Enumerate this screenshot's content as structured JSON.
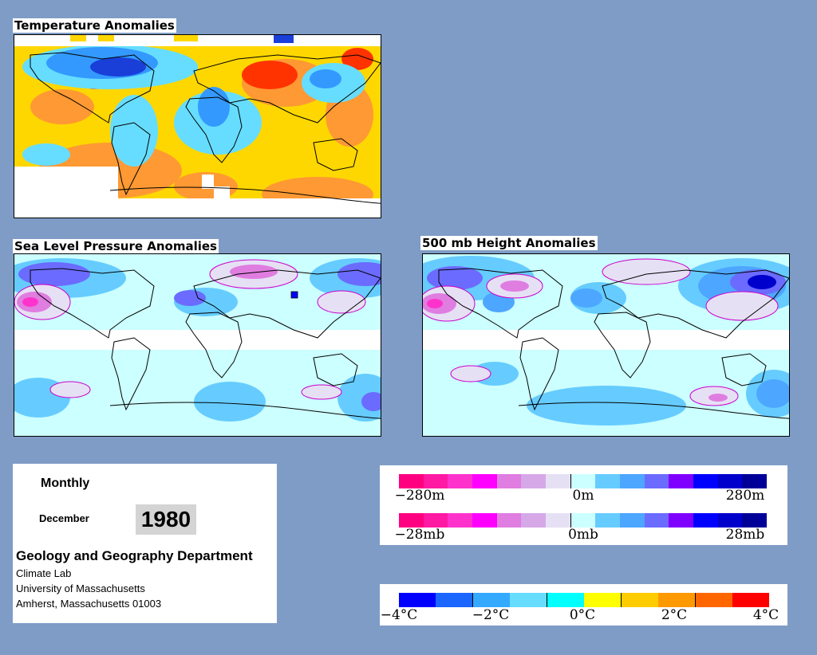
{
  "maps": {
    "temperature": {
      "title": "Temperature Anomalies"
    },
    "slp": {
      "title": "Sea Level Pressure Anomalies"
    },
    "height": {
      "title": "500 mb Height Anomalies"
    }
  },
  "info": {
    "period": "Monthly",
    "month": "December",
    "year": "1980",
    "department": "Geology and Geography Department",
    "lab": "Climate Lab",
    "university": "University of Massachusetts",
    "address": "Amherst, Massachusetts 01003"
  },
  "legends": {
    "height": {
      "labels": [
        "−280m",
        "0m",
        "280m"
      ]
    },
    "pressure": {
      "labels": [
        "−28mb",
        "0mb",
        "28mb"
      ]
    },
    "temperature": {
      "labels": [
        "−4°C",
        "−2°C",
        "0°C",
        "2°C",
        "4°C"
      ]
    }
  },
  "colors": {
    "background": "#7f9cc6",
    "anomaly_scale": [
      "#ff0080",
      "#ff19a3",
      "#ff33cc",
      "#ff00ff",
      "#e07de0",
      "#d6a8e8",
      "#e6e0f5",
      "#ccffff",
      "#66ccff",
      "#4da6ff",
      "#6b6bff",
      "#8000ff",
      "#0000ff",
      "#0000cc",
      "#000099"
    ],
    "temperature_scale": [
      "#0000ff",
      "#1a66ff",
      "#33aaff",
      "#66ddff",
      "#00ffff",
      "#ffff00",
      "#ffcc00",
      "#ff9900",
      "#ff6600",
      "#ff0000"
    ]
  }
}
